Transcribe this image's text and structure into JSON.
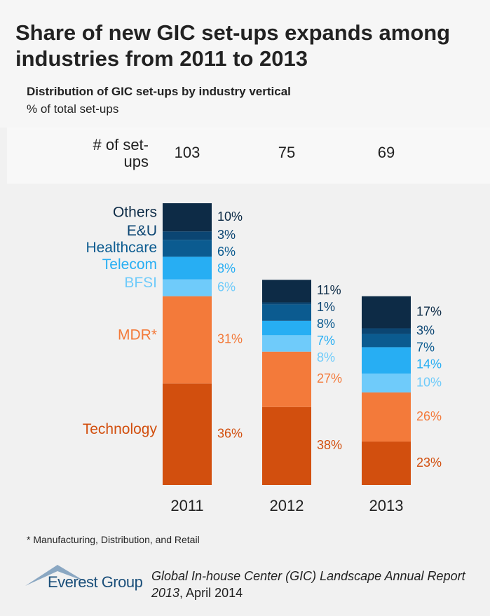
{
  "chart_data": {
    "type": "stacked-bar",
    "title": "Share of new GIC set-ups expands among industries from 2011 to 2013",
    "subtitle": "Distribution of GIC set-ups by industry vertical",
    "unit_label": "% of total set-ups",
    "count_header": "# of set-ups",
    "counts": [
      103,
      75,
      69
    ],
    "categories": [
      "2011",
      "2012",
      "2013"
    ],
    "series": [
      {
        "name": "Technology",
        "color": "#d24f0e",
        "values": [
          36,
          38,
          23
        ],
        "value_labels": [
          "36%",
          "38%",
          "23%"
        ]
      },
      {
        "name": "MDR*",
        "color": "#f37a3a",
        "values": [
          31,
          27,
          26
        ],
        "value_labels": [
          "31%",
          "27%",
          "26%"
        ]
      },
      {
        "name": "BFSI",
        "color": "#6fcbfa",
        "values": [
          6,
          8,
          10
        ],
        "value_labels": [
          "6%",
          "8%",
          "10%"
        ]
      },
      {
        "name": "Telecom",
        "color": "#27aef3",
        "values": [
          8,
          7,
          14
        ],
        "value_labels": [
          "8%",
          "7%",
          "14%"
        ]
      },
      {
        "name": "Healthcare",
        "color": "#0b5b90",
        "values": [
          6,
          8,
          7
        ],
        "value_labels": [
          "6%",
          "8%",
          "7%"
        ]
      },
      {
        "name": "E&U",
        "color": "#0b4572",
        "values": [
          3,
          1,
          3
        ],
        "value_labels": [
          "3%",
          "1%",
          "3%"
        ]
      },
      {
        "name": "Others",
        "color": "#0d2b46",
        "values": [
          10,
          11,
          17
        ],
        "value_labels": [
          "10%",
          "11%",
          "17%"
        ]
      }
    ],
    "footnote": "* Manufacturing, Distribution, and Retail",
    "logo": "Everest Group",
    "source_title": "Global In-house Center (GIC) Landscape Annual Report 2013",
    "source_date": ", April 2014"
  }
}
